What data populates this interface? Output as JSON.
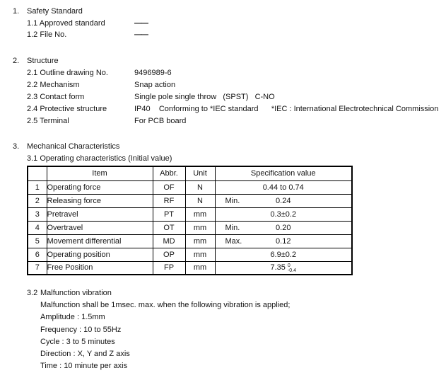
{
  "sections": {
    "s1": {
      "number": "1.",
      "title": "Safety Standard",
      "items": [
        {
          "label": "1.1 Approved standard",
          "value": "——"
        },
        {
          "label": "1.2 File No.",
          "value": "——"
        }
      ]
    },
    "s2": {
      "number": "2.",
      "title": "Structure",
      "items": [
        {
          "label": "2.1 Outline drawing No.",
          "value": "9496989-6"
        },
        {
          "label": "2.2 Mechanism",
          "value": "Snap action"
        },
        {
          "label": "2.3 Contact form",
          "value": "Single pole single throw   (SPST)   C-NO"
        },
        {
          "label": "2.4 Protective structure",
          "value": "IP40    Conforming to *IEC standard      *IEC : International Electrotechnical Commission"
        },
        {
          "label": "2.5 Terminal",
          "value": "For PCB board"
        }
      ]
    },
    "s3": {
      "number": "3.",
      "title": "Mechanical Characteristics",
      "sub31_title": "3.1 Operating characteristics (Initial value)",
      "table": {
        "headers": [
          "",
          "Item",
          "Abbr.",
          "Unit",
          "Specification value"
        ],
        "rows": [
          {
            "no": "1",
            "item": "Operating force",
            "abbr": "OF",
            "unit": "N",
            "qualifier": "",
            "value": "0.44 to 0.74"
          },
          {
            "no": "2",
            "item": "Releasing force",
            "abbr": "RF",
            "unit": "N",
            "qualifier": "Min.",
            "value": "0.24"
          },
          {
            "no": "3",
            "item": "Pretravel",
            "abbr": "PT",
            "unit": "mm",
            "qualifier": "",
            "value": "0.3±0.2"
          },
          {
            "no": "4",
            "item": "Overtravel",
            "abbr": "OT",
            "unit": "mm",
            "qualifier": "Min.",
            "value": "0.20"
          },
          {
            "no": "5",
            "item": "Movement differential",
            "abbr": "MD",
            "unit": "mm",
            "qualifier": "Max.",
            "value": "0.12"
          },
          {
            "no": "6",
            "item": "Operating position",
            "abbr": "OP",
            "unit": "mm",
            "qualifier": "",
            "value": "6.9±0.2"
          },
          {
            "no": "7",
            "item": "Free Position",
            "abbr": "FP",
            "unit": "mm",
            "qualifier": "",
            "value": "7.35",
            "tol_upper": "0",
            "tol_lower": "-0.4"
          }
        ]
      },
      "sub32": {
        "number": "3.2",
        "title": "Malfunction vibration",
        "lines": [
          "Malfunction shall be 1msec. max. when the following vibration is applied;",
          "Amplitude : 1.5mm",
          "Frequency : 10 to 55Hz",
          "Cycle : 3 to 5 minutes",
          "Direction : X, Y and Z axis",
          "Time : 10 minute per axis"
        ]
      }
    }
  }
}
